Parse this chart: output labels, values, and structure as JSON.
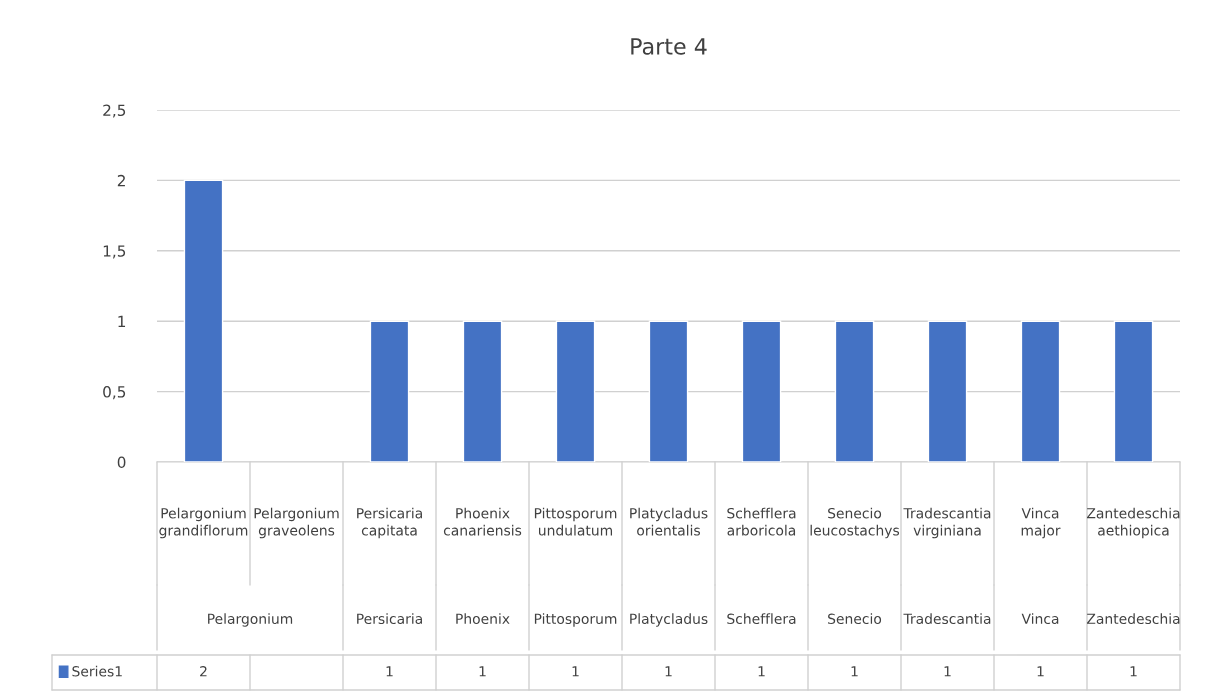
{
  "chart_data": {
    "type": "bar",
    "title": "Parte 4",
    "categories": [
      "Pelargonium grandiflorum",
      "Pelargonium graveolens",
      "Persicaria capitata",
      "Phoenix canariensis",
      "Pittosporum undulatum",
      "Platycladus orientalis",
      "Schefflera arboricola",
      "Senecio leucostachys",
      "Tradescantia virginiana",
      "Vinca major",
      "Zantedeschia aethiopica"
    ],
    "series": [
      {
        "name": "Series1",
        "color": "#4472c4",
        "values": [
          2,
          null,
          1,
          1,
          1,
          1,
          1,
          1,
          1,
          1,
          1
        ]
      }
    ],
    "annotations": [
      "Pelargonium",
      "Persicaria",
      "Phoenix",
      "Pittosporum",
      "Platycladus",
      "Schefflera",
      "Senecio",
      "Tradescantia",
      "Vinca",
      "Zantedeschia"
    ],
    "ylim": [
      0,
      2.5
    ],
    "yticks": [
      0,
      {
        "value": 0.5,
        "label": "0,5"
      },
      1,
      {
        "value": 1.5,
        "label": "1,5"
      },
      2,
      {
        "value": 2.5,
        "label": "2,5"
      }
    ],
    "grid": "y",
    "legend": "bottom",
    "data_labels": true
  }
}
